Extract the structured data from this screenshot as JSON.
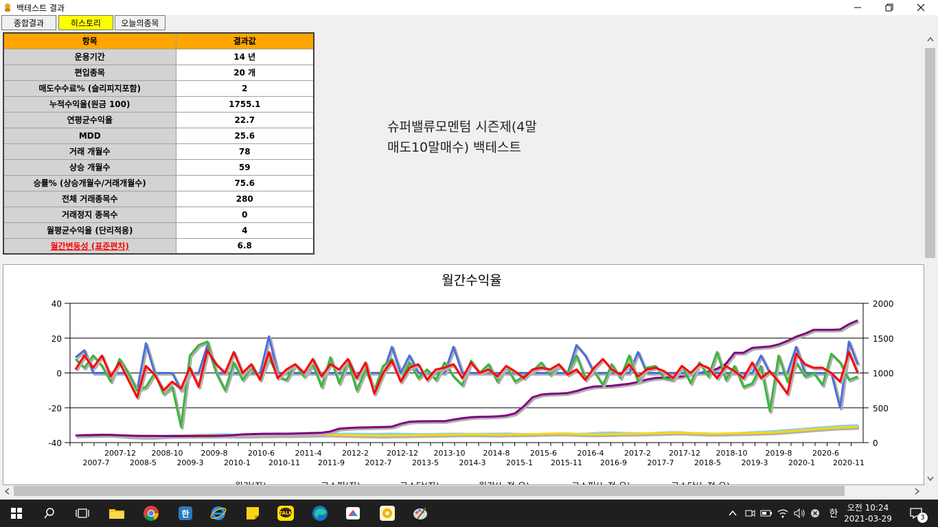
{
  "window": {
    "title": "백테스트 결과",
    "minimize": "─",
    "maximize": "❐",
    "close": "✕"
  },
  "tabs": [
    {
      "label": "종합결과"
    },
    {
      "label": "히스토리"
    },
    {
      "label": "오늘의종목"
    }
  ],
  "summary": {
    "header_key": "항목",
    "header_value": "결과값",
    "rows": [
      {
        "k": "운용기간",
        "v": "14 년"
      },
      {
        "k": "편입종목",
        "v": "20 개"
      },
      {
        "k": "매도수수료% (슬리피지포함)",
        "v": "2"
      },
      {
        "k": "누적수익율(원금 100)",
        "v": "1755.1"
      },
      {
        "k": "연평균수익율",
        "v": "22.7"
      },
      {
        "k": "MDD",
        "v": "25.6"
      },
      {
        "k": "거래 개월수",
        "v": "78"
      },
      {
        "k": "상승 개월수",
        "v": "59"
      },
      {
        "k": "승률% (상승개월수/거래개월수)",
        "v": "75.6"
      },
      {
        "k": "전체 거래종목수",
        "v": "280"
      },
      {
        "k": "거래정지 종목수",
        "v": "0"
      },
      {
        "k": "월평균수익율 (단리적용)",
        "v": "4"
      },
      {
        "k": "월간변동성 (표준편차)",
        "v": "6.8"
      }
    ]
  },
  "strategy_title_line1": "슈퍼밸류모멘텀 시즌제(4말",
  "strategy_title_line2": "매도10말매수) 백테스트",
  "chart_data": {
    "type": "line",
    "title": "월간수익율",
    "left_axis": {
      "ylim": [
        -40,
        40
      ],
      "ticks": [
        "40",
        "20",
        "0",
        "-20",
        "-40"
      ]
    },
    "right_axis": {
      "ylim": [
        0,
        2000
      ],
      "ticks": [
        "2000",
        "1500",
        "1000",
        "500",
        "0"
      ]
    },
    "x_ticks_top": [
      "2007-12",
      "2008-10",
      "2009-8",
      "2010-6",
      "2011-4",
      "2012-2",
      "2012-12",
      "2013-10",
      "2014-8",
      "2015-6",
      "2016-4",
      "2017-2",
      "2017-12",
      "2018-10",
      "2019-8",
      "2020-6"
    ],
    "x_ticks_bottom": [
      "2007-7",
      "2008-5",
      "2009-3",
      "2010-1",
      "2010-11",
      "2011-9",
      "2012-7",
      "2013-5",
      "2014-3",
      "2015-1",
      "2015-11",
      "2016-9",
      "2017-7",
      "2018-5",
      "2019-3",
      "2020-1",
      "2020-11"
    ],
    "legend_partial": [
      "월간(좌)",
      "코스피(좌)",
      "코스닥(좌)",
      "월간(누적,우)",
      "코스피(누적,우)",
      "코스닥(누적,우)"
    ],
    "colors": {
      "monthly": "#ff0000",
      "kospi": "#4a6fdc",
      "kosdaq": "#3cb53c",
      "monthly_cum": "#800080",
      "kospi_cum": "#87cefa",
      "kosdaq_cum": "#ffd700"
    },
    "series": [
      {
        "name": "월간(누적,우)",
        "axis": "right",
        "values": [
          100,
          105,
          108,
          110,
          110,
          104,
          100,
          98,
          97,
          96,
          95,
          94,
          94,
          95,
          96,
          97,
          98,
          100,
          106,
          118,
          122,
          126,
          127,
          128,
          128,
          130,
          134,
          138,
          142,
          160,
          200,
          210,
          216,
          218,
          222,
          225,
          230,
          270,
          300,
          305,
          306,
          307,
          307,
          330,
          350,
          365,
          370,
          372,
          376,
          388,
          420,
          520,
          650,
          690,
          700,
          704,
          712,
          740,
          780,
          805,
          810,
          815,
          830,
          845,
          870,
          905,
          928,
          934,
          940,
          950,
          990,
          1000,
          1020,
          1060,
          1130,
          1290,
          1290,
          1360,
          1370,
          1380,
          1410,
          1460,
          1520,
          1565,
          1620,
          1620,
          1620,
          1625,
          1700,
          1755
        ]
      },
      {
        "name": "코스피(누적,우)",
        "axis": "right",
        "values": [
          100,
          110,
          112,
          114,
          112,
          108,
          100,
          95,
          90,
          92,
          96,
          102,
          105,
          108,
          112,
          116,
          118,
          120,
          116,
          115,
          118,
          120,
          122,
          124,
          120,
          116,
          115,
          116,
          120,
          124,
          126,
          128,
          126,
          124,
          124,
          126,
          128,
          126,
          124,
          122,
          122,
          124,
          126,
          128,
          127,
          126,
          126,
          127,
          128,
          130,
          126,
          124,
          122,
          124,
          128,
          132,
          130,
          126,
          128,
          136,
          144,
          146,
          140,
          136,
          134,
          132,
          138,
          146,
          150,
          148,
          138,
          134,
          130,
          128,
          130,
          134,
          140,
          148,
          154,
          162,
          170,
          180,
          190,
          200,
          210,
          220,
          230,
          238,
          244,
          250
        ]
      },
      {
        "name": "코스닥(누적,우)",
        "axis": "right",
        "values": [
          100,
          104,
          108,
          112,
          110,
          100,
          90,
          84,
          80,
          82,
          88,
          94,
          98,
          102,
          104,
          106,
          104,
          100,
          98,
          96,
          98,
          100,
          102,
          104,
          104,
          106,
          108,
          110,
          112,
          114,
          110,
          106,
          104,
          102,
          100,
          98,
          100,
          102,
          104,
          106,
          108,
          110,
          112,
          114,
          116,
          118,
          116,
          114,
          112,
          114,
          116,
          118,
          120,
          124,
          128,
          130,
          128,
          122,
          118,
          116,
          118,
          120,
          124,
          126,
          128,
          130,
          132,
          136,
          140,
          142,
          136,
          130,
          126,
          128,
          130,
          132,
          134,
          136,
          140,
          144,
          150,
          160,
          170,
          180,
          190,
          200,
          208,
          216,
          220,
          224
        ]
      },
      {
        "name": "월간(좌)",
        "axis": "left",
        "values": [
          2,
          10,
          3,
          10,
          -2,
          6,
          -4,
          -14,
          4,
          -1,
          -10,
          -5,
          -9,
          3,
          -8,
          13,
          5,
          0,
          12,
          0,
          5,
          -4,
          12,
          -3,
          2,
          5,
          0,
          8,
          -2,
          5,
          2,
          8,
          -3,
          6,
          -12,
          0,
          7,
          -5,
          3,
          5,
          -4,
          2,
          3,
          5,
          -3,
          6,
          0,
          2,
          -2,
          4,
          1,
          -3,
          2,
          3,
          2,
          5,
          -1,
          2,
          -4,
          3,
          8,
          2,
          -1,
          5,
          -2,
          2,
          3,
          1,
          -3,
          4,
          0,
          5,
          3,
          -3,
          4,
          1,
          -3,
          6,
          -3,
          1,
          -5,
          -12,
          11,
          5,
          3,
          3,
          0,
          -5,
          12,
          0
        ]
      },
      {
        "name": "코스피(좌)",
        "axis": "left",
        "values": [
          9,
          13,
          0,
          0,
          0,
          0,
          0,
          -10,
          17,
          0,
          0,
          0,
          -10,
          0,
          0,
          16,
          0,
          0,
          0,
          0,
          0,
          0,
          21,
          0,
          0,
          0,
          0,
          0,
          0,
          0,
          0,
          0,
          0,
          0,
          0,
          0,
          15,
          0,
          10,
          0,
          0,
          0,
          0,
          15,
          0,
          0,
          0,
          0,
          0,
          0,
          0,
          0,
          0,
          0,
          0,
          0,
          0,
          16,
          10,
          0,
          0,
          0,
          0,
          0,
          12,
          0,
          0,
          0,
          0,
          0,
          0,
          0,
          0,
          0,
          0,
          0,
          0,
          0,
          10,
          0,
          0,
          0,
          15,
          0,
          0,
          0,
          0,
          -20,
          18,
          5
        ]
      },
      {
        "name": "코스닥(좌)",
        "axis": "left",
        "values": [
          8,
          3,
          10,
          4,
          -5,
          8,
          0,
          -10,
          -8,
          0,
          -12,
          -8,
          -31,
          10,
          16,
          18,
          0,
          -10,
          6,
          -4,
          3,
          -3,
          9,
          -2,
          -4,
          5,
          -2,
          5,
          -8,
          9,
          -6,
          7,
          -10,
          2,
          -10,
          4,
          8,
          -5,
          6,
          -3,
          2,
          -4,
          6,
          -2,
          -7,
          7,
          0,
          5,
          -5,
          4,
          -5,
          -2,
          1,
          6,
          -1,
          4,
          0,
          10,
          -3,
          1,
          -7,
          5,
          -3,
          10,
          -5,
          3,
          4,
          -3,
          -4,
          4,
          -6,
          6,
          -2,
          12,
          -4,
          4,
          -8,
          -6,
          4,
          -22,
          10,
          -5,
          6,
          -2,
          0,
          -7,
          11,
          6,
          -4,
          -2
        ]
      }
    ]
  },
  "taskbar": {
    "apps": [
      {
        "name": "start-icon"
      },
      {
        "name": "search-icon"
      },
      {
        "name": "task-view-icon"
      },
      {
        "name": "file-explorer-icon"
      },
      {
        "name": "chrome-icon"
      },
      {
        "name": "hancom-icon"
      },
      {
        "name": "internet-explorer-icon"
      },
      {
        "name": "sticky-notes-icon"
      },
      {
        "name": "kakaotalk-icon"
      },
      {
        "name": "edge-icon"
      },
      {
        "name": "app-icon"
      },
      {
        "name": "money-app-icon"
      },
      {
        "name": "paint-icon"
      }
    ],
    "kakao_label": "TALK",
    "hancom_label": "한",
    "ime": "한",
    "clock_time": "오전 10:24",
    "clock_date": "2021-03-29",
    "notification_count": "3"
  }
}
